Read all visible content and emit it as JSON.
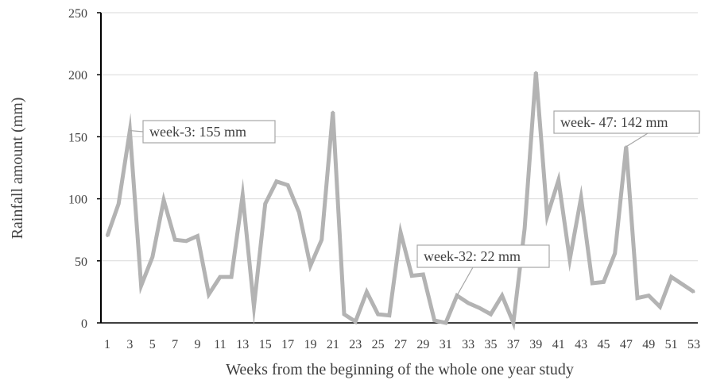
{
  "chart_data": {
    "type": "line",
    "title": "",
    "xlabel": "Weeks from the beginning of the whole one year study",
    "ylabel": "Rainfall amount (mm)",
    "ylim": [
      0,
      250
    ],
    "yticks": [
      0,
      50,
      100,
      150,
      200,
      250
    ],
    "xlim": [
      1,
      53
    ],
    "xticks": [
      1,
      3,
      5,
      7,
      9,
      11,
      13,
      15,
      17,
      19,
      21,
      23,
      25,
      27,
      29,
      31,
      33,
      35,
      37,
      39,
      41,
      43,
      45,
      47,
      49,
      51,
      53
    ],
    "grid": "horizontal",
    "legend": "none",
    "line_color": "#b3b3b3",
    "x": [
      1,
      2,
      3,
      4,
      5,
      6,
      7,
      8,
      9,
      10,
      11,
      12,
      13,
      14,
      15,
      16,
      17,
      18,
      19,
      20,
      21,
      22,
      23,
      24,
      25,
      26,
      27,
      28,
      29,
      30,
      31,
      32,
      33,
      34,
      35,
      36,
      37,
      38,
      39,
      40,
      41,
      42,
      43,
      44,
      45,
      46,
      47,
      48,
      49,
      50,
      51,
      52,
      53
    ],
    "series": [
      {
        "values": [
          70,
          96,
          155,
          30,
          53,
          99,
          67,
          66,
          70,
          23,
          37,
          37,
          103,
          13,
          96,
          114,
          111,
          89,
          46,
          67,
          170,
          7,
          1,
          25,
          7,
          6,
          73,
          38,
          39,
          2,
          0,
          22,
          16,
          12,
          7,
          22,
          0,
          76,
          202,
          86,
          115,
          51,
          101,
          32,
          33,
          56,
          142,
          20,
          22,
          13,
          37,
          31,
          25
        ]
      }
    ],
    "annotations": [
      {
        "text": "week-3:  155 mm",
        "x": 3,
        "y": 155
      },
      {
        "text": "week-32:  22 mm",
        "x": 32,
        "y": 22
      },
      {
        "text": "week- 47:  142 mm",
        "x": 47,
        "y": 142
      }
    ]
  }
}
